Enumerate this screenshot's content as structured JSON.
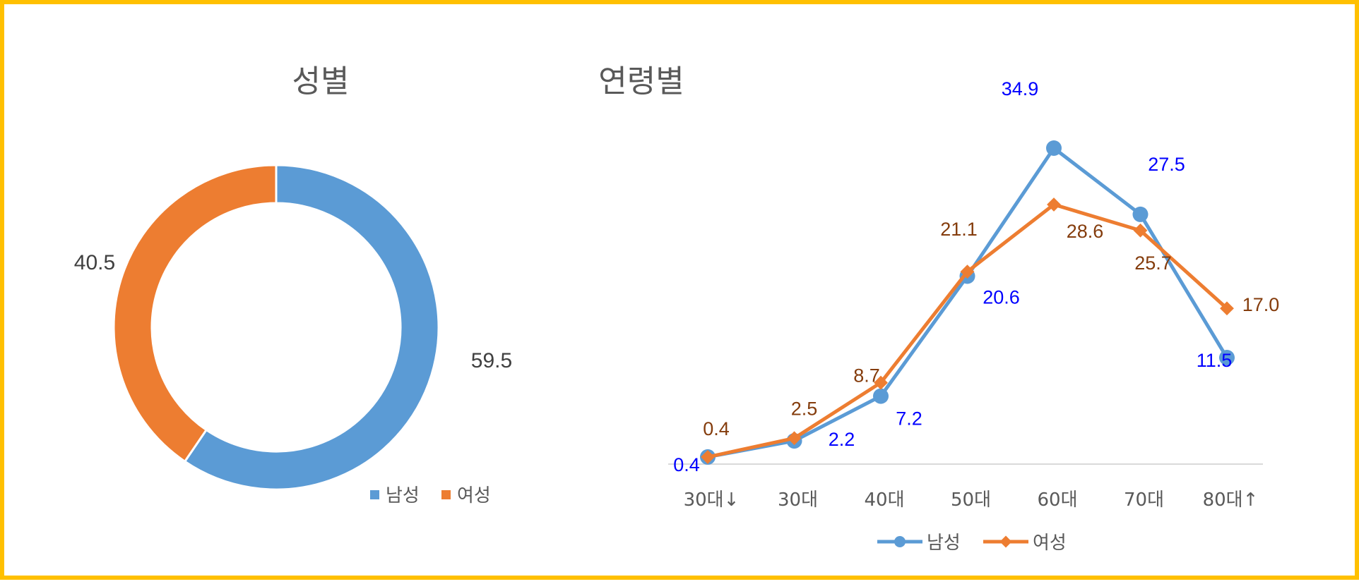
{
  "frame_color": "#FFC000",
  "chart_data": [
    {
      "type": "pie",
      "variant": "doughnut",
      "title": "성별",
      "categories": [
        "남성",
        "여성"
      ],
      "values": [
        59.5,
        40.5
      ],
      "value_labels": [
        "59.5",
        "40.5"
      ],
      "colors": [
        "#5B9BD5",
        "#ED7D31"
      ],
      "legend": {
        "position": "bottom-right",
        "items": [
          "남성",
          "여성"
        ]
      }
    },
    {
      "type": "line",
      "title": "연령별",
      "categories": [
        "30대↓",
        "30대",
        "40대",
        "50대",
        "60대",
        "70대",
        "80대↑"
      ],
      "series": [
        {
          "name": "남성",
          "marker": "circle",
          "color": "#5B9BD5",
          "label_color": "#0000FF",
          "values": [
            0.4,
            2.2,
            7.2,
            20.6,
            34.9,
            27.5,
            11.5
          ],
          "value_labels": [
            "0.4",
            "2.2",
            "7.2",
            "20.6",
            "34.9",
            "27.5",
            "11.5"
          ]
        },
        {
          "name": "여성",
          "marker": "diamond",
          "color": "#ED7D31",
          "label_color": "#843C0C",
          "values": [
            0.4,
            2.5,
            8.7,
            21.1,
            28.6,
            25.7,
            17.0
          ],
          "value_labels": [
            "0.4",
            "2.5",
            "8.7",
            "21.1",
            "28.6",
            "25.7",
            "17.0"
          ]
        }
      ],
      "ylim": [
        0,
        35
      ],
      "legend": {
        "position": "bottom",
        "items": [
          "남성",
          "여성"
        ]
      },
      "grid": false
    }
  ]
}
